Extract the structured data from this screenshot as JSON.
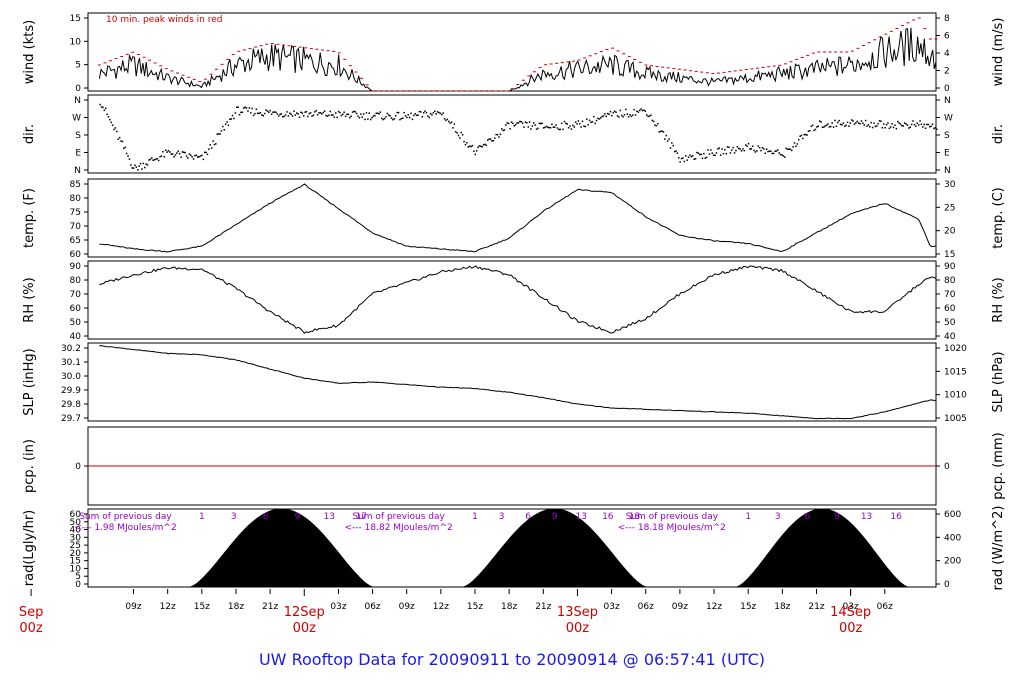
{
  "title": "UW Rooftop Data for 20090911  to  20090914 @ 06:57:41  (UTC)",
  "colors": {
    "trace": "#000000",
    "peak": "#cc0000",
    "date": "#cc0000",
    "note": "#9900cc",
    "title": "#1a1aee"
  },
  "panels": [
    {
      "id": "wind",
      "left_label": "wind (kts)",
      "right_label": "wind (m/s)",
      "left_ticks": [
        "0",
        "5",
        "10",
        "15"
      ],
      "right_ticks": [
        "0",
        "2",
        "4",
        "6",
        "8"
      ],
      "note": "10 min. peak winds in red"
    },
    {
      "id": "dir",
      "left_label": "dir.",
      "right_label": "dir.",
      "left_ticks": [
        "N",
        "E",
        "S",
        "W",
        "N"
      ],
      "right_ticks": [
        "N",
        "E",
        "S",
        "W",
        "N"
      ]
    },
    {
      "id": "temp",
      "left_label": "temp. (F)",
      "right_label": "temp. (C)",
      "left_ticks": [
        "60",
        "65",
        "70",
        "75",
        "80",
        "85"
      ],
      "right_ticks": [
        "15",
        "20",
        "25",
        "30"
      ]
    },
    {
      "id": "rh",
      "left_label": "RH (%)",
      "right_label": "RH (%)",
      "left_ticks": [
        "40",
        "50",
        "60",
        "70",
        "80",
        "90"
      ],
      "right_ticks": [
        "40",
        "50",
        "60",
        "70",
        "80",
        "90"
      ]
    },
    {
      "id": "slp",
      "left_label": "SLP (inHg)",
      "right_label": "SLP (hPa)",
      "left_ticks": [
        "29.7",
        "29.8",
        "29.9",
        "30.0",
        "30.1",
        "30.2"
      ],
      "right_ticks": [
        "1005",
        "1010",
        "1015",
        "1020"
      ]
    },
    {
      "id": "pcp",
      "left_label": "pcp. (in)",
      "right_label": "pcp. (mm)",
      "left_ticks": [
        "0"
      ],
      "right_ticks": [
        "0"
      ]
    },
    {
      "id": "rad",
      "left_label": "rad(Lgly/hr)",
      "right_label": "rad (W/m^2)",
      "left_ticks": [
        "0",
        "5",
        "10",
        "15",
        "20",
        "25",
        "30",
        "40",
        "50",
        "60"
      ],
      "right_ticks": [
        "0",
        "200",
        "400",
        "600"
      ]
    }
  ],
  "time_ticks": [
    "09z",
    "12z",
    "15z",
    "18z",
    "21z",
    "03z",
    "06z",
    "09z",
    "12z",
    "15z",
    "18z",
    "21z",
    "03z",
    "06z",
    "09z",
    "12z",
    "15z",
    "18z",
    "21z",
    "03z",
    "06z"
  ],
  "date_labels": [
    {
      "top": "Sep",
      "bottom": "00z"
    },
    {
      "top": "12Sep",
      "bottom": "00z"
    },
    {
      "top": "13Sep",
      "bottom": "00z"
    },
    {
      "top": "14Sep",
      "bottom": "00z"
    }
  ],
  "rad_notes": [
    {
      "line1": "Sum of previous day",
      "line2": "<--- 1.98 MJoules/m^2",
      "hours": [
        "1",
        "3",
        "6",
        "9",
        "13",
        "17"
      ]
    },
    {
      "line1": "Sum of previous day",
      "line2": "<--- 18.82 MJoules/m^2",
      "hours": [
        "1",
        "3",
        "6",
        "9",
        "13",
        "16",
        "18"
      ]
    },
    {
      "line1": "Sum of previous day",
      "line2": "<--- 18.18 MJoules/m^2",
      "hours": [
        "1",
        "3",
        "6",
        "9",
        "13",
        "16"
      ]
    }
  ],
  "chart_data": [
    {
      "type": "line",
      "panel": "wind",
      "xlabel": "",
      "ylabel": "wind (kts)",
      "ylim": [
        0,
        18
      ],
      "x_hours": [
        6,
        9,
        12,
        15,
        18,
        21,
        24,
        27,
        30,
        33,
        36,
        39,
        42,
        45,
        48,
        51,
        54,
        57,
        60,
        63,
        66,
        69,
        72,
        75,
        78,
        79
      ],
      "values": [
        4,
        6,
        3,
        1,
        6,
        8,
        7,
        6,
        0,
        0,
        0,
        0,
        0,
        4,
        5,
        6,
        4,
        3,
        2,
        3,
        4,
        5,
        6,
        9,
        11,
        8
      ],
      "peaks": [
        6,
        9,
        5,
        2,
        9,
        11,
        10,
        9,
        0,
        0,
        0,
        0,
        0,
        6,
        7,
        10,
        6,
        5,
        4,
        5,
        6,
        9,
        9,
        13,
        17,
        12
      ]
    },
    {
      "type": "scatter",
      "panel": "dir",
      "ylabel": "dir.",
      "ylim": [
        0,
        360
      ],
      "x_hours": [
        6,
        9,
        12,
        15,
        18,
        21,
        24,
        27,
        30,
        33,
        36,
        39,
        42,
        45,
        48,
        51,
        54,
        57,
        60,
        63,
        66,
        69,
        72,
        75,
        78,
        79
      ],
      "values": [
        350,
        10,
        90,
        60,
        300,
        290,
        285,
        280,
        275,
        270,
        290,
        90,
        230,
        220,
        230,
        280,
        300,
        60,
        90,
        120,
        80,
        230,
        240,
        230,
        230,
        220
      ]
    },
    {
      "type": "line",
      "panel": "temp",
      "ylabel": "temp. (F)",
      "ylim": [
        58,
        87
      ],
      "x_hours": [
        6,
        9,
        12,
        15,
        18,
        21,
        24,
        27,
        30,
        33,
        36,
        39,
        42,
        45,
        48,
        51,
        54,
        57,
        60,
        63,
        66,
        69,
        72,
        75,
        78,
        79
      ],
      "values": [
        63,
        61,
        60,
        62,
        70,
        78,
        85,
        76,
        67,
        62,
        61,
        60,
        65,
        75,
        83,
        82,
        73,
        66,
        64,
        63,
        60,
        67,
        74,
        78,
        72,
        62
      ]
    },
    {
      "type": "line",
      "panel": "rh",
      "ylabel": "RH (%)",
      "ylim": [
        35,
        92
      ],
      "x_hours": [
        6,
        9,
        12,
        15,
        18,
        21,
        24,
        27,
        30,
        33,
        36,
        39,
        42,
        45,
        48,
        51,
        54,
        57,
        60,
        63,
        66,
        69,
        72,
        75,
        78,
        79
      ],
      "values": [
        75,
        82,
        87,
        86,
        72,
        55,
        40,
        45,
        68,
        76,
        84,
        88,
        82,
        65,
        48,
        40,
        50,
        68,
        82,
        88,
        85,
        70,
        55,
        55,
        75,
        80
      ]
    },
    {
      "type": "line",
      "panel": "slp",
      "ylabel": "SLP (inHg)",
      "ylim": [
        29.65,
        30.25
      ],
      "x_hours": [
        6,
        9,
        12,
        15,
        18,
        21,
        24,
        27,
        30,
        33,
        36,
        39,
        42,
        45,
        48,
        51,
        54,
        57,
        60,
        63,
        66,
        69,
        72,
        75,
        78,
        79
      ],
      "values": [
        30.23,
        30.2,
        30.17,
        30.16,
        30.12,
        30.05,
        29.98,
        29.94,
        29.95,
        29.93,
        29.91,
        29.9,
        29.87,
        29.83,
        29.78,
        29.75,
        29.74,
        29.73,
        29.72,
        29.71,
        29.69,
        29.67,
        29.67,
        29.72,
        29.79,
        29.81
      ]
    },
    {
      "type": "line",
      "panel": "pcp",
      "ylabel": "pcp. (in)",
      "ylim": [
        -1,
        1
      ],
      "x_hours": [
        6,
        79
      ],
      "values": [
        0,
        0
      ]
    },
    {
      "type": "area",
      "panel": "rad",
      "ylabel": "rad(Lgly/hr)",
      "ylim": [
        0,
        60
      ],
      "days": [
        {
          "start": 14,
          "end": 30,
          "peak": 60
        },
        {
          "start": 38,
          "end": 54,
          "peak": 60
        },
        {
          "start": 62,
          "end": 77,
          "peak": 60
        }
      ]
    }
  ]
}
